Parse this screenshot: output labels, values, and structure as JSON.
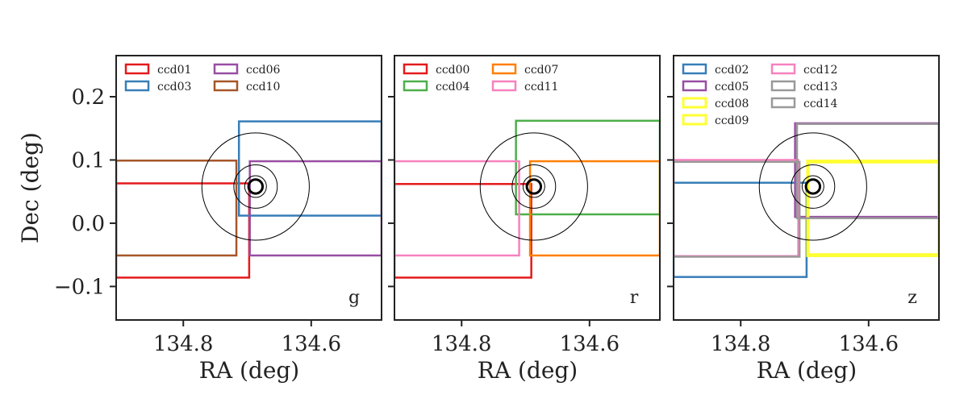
{
  "chart_data": [
    {
      "type": "line",
      "band": "g",
      "xlabel": "RA (deg)",
      "ylabel": "Dec (deg)",
      "xlim": [
        134.905,
        134.49
      ],
      "ylim": [
        -0.153,
        0.265
      ],
      "xticks": [
        {
          "value": 134.8,
          "label": "134.8"
        },
        {
          "value": 134.6,
          "label": "134.6"
        }
      ],
      "yticks": [
        {
          "value": 0.2,
          "label": "0.2"
        },
        {
          "value": 0.1,
          "label": "0.1"
        },
        {
          "value": 0.0,
          "label": "0.0"
        },
        {
          "value": -0.1,
          "label": "−0.1"
        }
      ],
      "legend_columns": [
        [
          "ccd01",
          "ccd03"
        ],
        [
          "ccd06",
          "ccd10"
        ]
      ],
      "series": [
        {
          "name": "ccd01",
          "color": "#e41a1c",
          "ra_min": 134.697,
          "ra_max": 134.905,
          "dec_min": -0.086,
          "dec_max": 0.063,
          "width": 2.5
        },
        {
          "name": "ccd03",
          "color": "#377eb8",
          "ra_min": 134.49,
          "ra_max": 134.713,
          "dec_min": 0.012,
          "dec_max": 0.161,
          "width": 2.5
        },
        {
          "name": "ccd06",
          "color": "#984ea3",
          "ra_min": 134.49,
          "ra_max": 134.696,
          "dec_min": -0.051,
          "dec_max": 0.098,
          "width": 2.5
        },
        {
          "name": "ccd10",
          "color": "#a65628",
          "ra_min": 134.717,
          "ra_max": 134.905,
          "dec_min": -0.051,
          "dec_max": 0.099,
          "width": 2.5
        }
      ]
    },
    {
      "type": "line",
      "band": "r",
      "xlabel": "RA (deg)",
      "ylabel": "",
      "xlim": [
        134.905,
        134.49
      ],
      "ylim": [
        -0.153,
        0.265
      ],
      "xticks": [
        {
          "value": 134.8,
          "label": "134.8"
        },
        {
          "value": 134.6,
          "label": "134.6"
        }
      ],
      "yticks": [],
      "legend_columns": [
        [
          "ccd00",
          "ccd04"
        ],
        [
          "ccd07",
          "ccd11"
        ]
      ],
      "series": [
        {
          "name": "ccd00",
          "color": "#e41a1c",
          "ra_min": 134.691,
          "ra_max": 134.905,
          "dec_min": -0.086,
          "dec_max": 0.062,
          "width": 2.5
        },
        {
          "name": "ccd04",
          "color": "#4daf4a",
          "ra_min": 134.49,
          "ra_max": 134.715,
          "dec_min": 0.014,
          "dec_max": 0.162,
          "width": 2.5
        },
        {
          "name": "ccd07",
          "color": "#ff7f00",
          "ra_min": 134.49,
          "ra_max": 134.693,
          "dec_min": -0.051,
          "dec_max": 0.098,
          "width": 2.5
        },
        {
          "name": "ccd11",
          "color": "#f781bf",
          "ra_min": 134.71,
          "ra_max": 134.905,
          "dec_min": -0.051,
          "dec_max": 0.098,
          "width": 2.5
        }
      ]
    },
    {
      "type": "line",
      "band": "z",
      "xlabel": "RA (deg)",
      "ylabel": "",
      "xlim": [
        134.905,
        134.49
      ],
      "ylim": [
        -0.153,
        0.265
      ],
      "xticks": [
        {
          "value": 134.8,
          "label": "134.8"
        },
        {
          "value": 134.6,
          "label": "134.6"
        }
      ],
      "yticks": [],
      "legend_columns": [
        [
          "ccd02",
          "ccd05",
          "ccd08",
          "ccd09"
        ],
        [
          "ccd12",
          "ccd13",
          "ccd14"
        ]
      ],
      "series": [
        {
          "name": "ccd02",
          "color": "#377eb8",
          "ra_min": 134.697,
          "ra_max": 134.905,
          "dec_min": -0.085,
          "dec_max": 0.064,
          "width": 2.5
        },
        {
          "name": "ccd05",
          "color": "#984ea3",
          "ra_min": 134.49,
          "ra_max": 134.715,
          "dec_min": 0.01,
          "dec_max": 0.158,
          "width": 2.5
        },
        {
          "name": "ccd08",
          "color": "#ffff33",
          "ra_min": 134.49,
          "ra_max": 134.695,
          "dec_min": -0.051,
          "dec_max": 0.098,
          "width": 4
        },
        {
          "name": "ccd09",
          "color": "#ffff33",
          "ra_min": 134.49,
          "ra_max": 134.695,
          "dec_min": -0.05,
          "dec_max": 0.097,
          "width": 4
        },
        {
          "name": "ccd12",
          "color": "#f781bf",
          "ra_min": 134.71,
          "ra_max": 134.905,
          "dec_min": -0.052,
          "dec_max": 0.1,
          "width": 2.5
        },
        {
          "name": "ccd13",
          "color": "#999999",
          "ra_min": 134.49,
          "ra_max": 134.712,
          "dec_min": 0.008,
          "dec_max": 0.157,
          "width": 2.5
        },
        {
          "name": "ccd14",
          "color": "#999999",
          "ra_min": 134.708,
          "ra_max": 134.905,
          "dec_min": -0.053,
          "dec_max": 0.097,
          "width": 2.5
        }
      ]
    }
  ],
  "overlay": {
    "center_ra": 134.687,
    "center_dec": 0.058,
    "circles": [
      {
        "radius_deg": 0.084,
        "width": 1
      },
      {
        "radius_deg": 0.034,
        "width": 1
      },
      {
        "radius_deg": 0.017,
        "width": 1
      },
      {
        "radius_deg": 0.011,
        "width": 3
      }
    ]
  },
  "colors": {
    "axes": "#222222",
    "background": "#ffffff"
  }
}
